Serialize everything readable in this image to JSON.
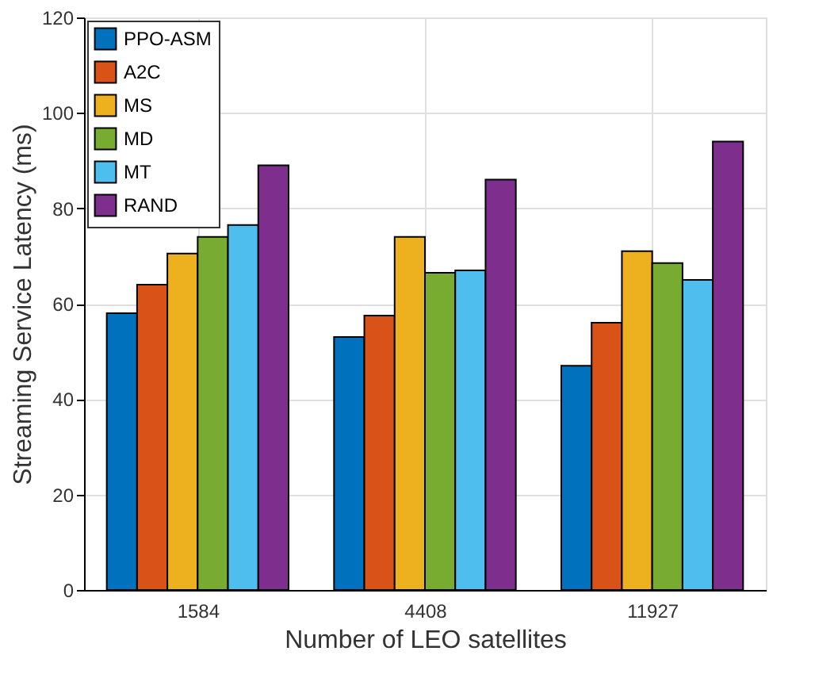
{
  "chart_data": {
    "type": "bar",
    "xlabel": "Number of LEO satellites",
    "ylabel": "Streaming Service Latency (ms)",
    "categories": [
      "1584",
      "4408",
      "11927"
    ],
    "series": [
      {
        "name": "PPO-ASM",
        "color": "#0072bd",
        "values": [
          58,
          53,
          47
        ]
      },
      {
        "name": "A2C",
        "color": "#d95319",
        "values": [
          64,
          57.5,
          56
        ]
      },
      {
        "name": "MS",
        "color": "#edb120",
        "values": [
          70.5,
          74,
          71
        ]
      },
      {
        "name": "MD",
        "color": "#77ac30",
        "values": [
          74,
          66.5,
          68.5
        ]
      },
      {
        "name": "MT",
        "color": "#4dbeee",
        "values": [
          76.5,
          67,
          65
        ]
      },
      {
        "name": "RAND",
        "color": "#7e2f8e",
        "values": [
          89,
          86,
          94
        ]
      }
    ],
    "ylim": [
      0,
      120
    ],
    "yticks": [
      0,
      20,
      40,
      60,
      80,
      100,
      120
    ],
    "grid": true,
    "legend": "top left"
  }
}
